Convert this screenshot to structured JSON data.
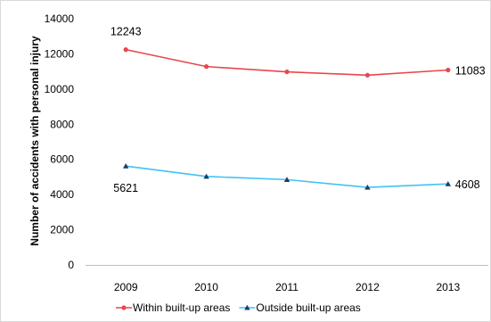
{
  "chart_data": {
    "type": "line",
    "title": "",
    "xlabel": "",
    "ylabel": "Number of accidents with personal injury",
    "categories": [
      "2009",
      "2010",
      "2011",
      "2012",
      "2013"
    ],
    "ylim": [
      0,
      14000
    ],
    "yticks": [
      0,
      2000,
      4000,
      6000,
      8000,
      10000,
      12000,
      14000
    ],
    "grid": false,
    "legend_position": "bottom",
    "series": [
      {
        "name": "Within built-up areas",
        "color": "#e8474c",
        "marker": "circle",
        "values": [
          12243,
          11280,
          10980,
          10790,
          11083
        ],
        "data_labels": [
          {
            "index": 0,
            "text": "12243",
            "position": "above"
          },
          {
            "index": 4,
            "text": "11083",
            "position": "right"
          }
        ]
      },
      {
        "name": "Outside built-up areas",
        "color": "#42c2f4",
        "marker": "triangle",
        "values": [
          5621,
          5030,
          4850,
          4410,
          4608
        ],
        "data_labels": [
          {
            "index": 0,
            "text": "5621",
            "position": "below"
          },
          {
            "index": 4,
            "text": "4608",
            "position": "right"
          }
        ]
      }
    ]
  }
}
